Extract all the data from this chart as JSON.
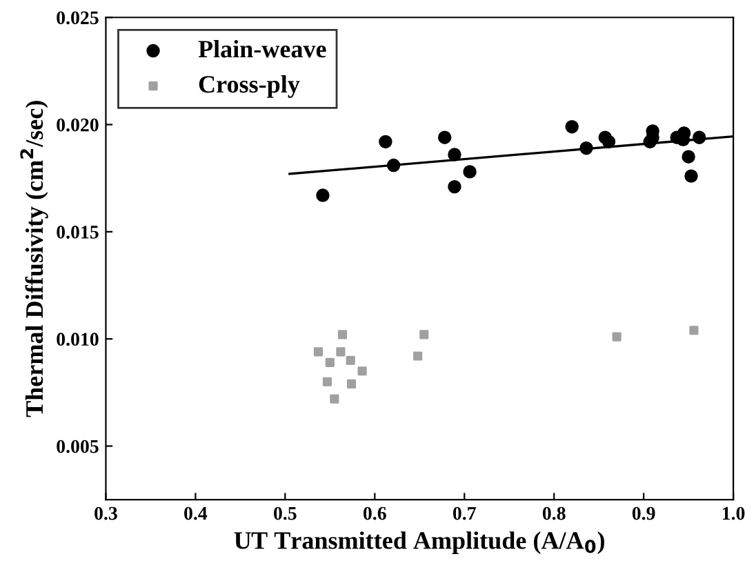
{
  "chart_data": {
    "type": "scatter",
    "xlabel": "UT Transmitted Amplitude (A/A$_{0}$)",
    "ylabel": "Thermal Diffusivity (cm$^{2}$/sec)",
    "xlim": [
      0.3,
      1.0
    ],
    "ylim": [
      0.0025,
      0.025
    ],
    "xticks": [
      {
        "value": 0.3,
        "label": "0.3"
      },
      {
        "value": 0.4,
        "label": "0.4"
      },
      {
        "value": 0.5,
        "label": "0.5"
      },
      {
        "value": 0.6,
        "label": "0.6"
      },
      {
        "value": 0.7,
        "label": "0.7"
      },
      {
        "value": 0.8,
        "label": "0.8"
      },
      {
        "value": 0.9,
        "label": "0.9"
      },
      {
        "value": 1.0,
        "label": "1.0"
      }
    ],
    "yticks": [
      {
        "value": 0.005,
        "label": "0.005"
      },
      {
        "value": 0.01,
        "label": "0.010"
      },
      {
        "value": 0.015,
        "label": "0.015"
      },
      {
        "value": 0.02,
        "label": "0.020"
      },
      {
        "value": 0.025,
        "label": "0.025"
      }
    ],
    "legend": "top left",
    "grid": false,
    "series": [
      {
        "name": "Plain-weave",
        "marker": "circle",
        "color": "#000000",
        "x": [
          0.542,
          0.612,
          0.621,
          0.678,
          0.689,
          0.689,
          0.706,
          0.82,
          0.836,
          0.857,
          0.861,
          0.907,
          0.91,
          0.91,
          0.937,
          0.945,
          0.944,
          0.95,
          0.953,
          0.962
        ],
        "values": [
          0.0167,
          0.0192,
          0.0181,
          0.0194,
          0.0186,
          0.0171,
          0.0178,
          0.0199,
          0.0189,
          0.0194,
          0.0192,
          0.0192,
          0.0197,
          0.0194,
          0.0194,
          0.0196,
          0.0193,
          0.0185,
          0.0176,
          0.0194
        ]
      },
      {
        "name": "Cross-ply",
        "marker": "square",
        "color": "#a0a0a0",
        "x": [
          0.537,
          0.564,
          0.562,
          0.55,
          0.573,
          0.586,
          0.547,
          0.574,
          0.555,
          0.648,
          0.655,
          0.87,
          0.956
        ],
        "values": [
          0.0094,
          0.0102,
          0.0094,
          0.0089,
          0.009,
          0.0085,
          0.008,
          0.0079,
          0.0072,
          0.0092,
          0.0102,
          0.0101,
          0.0104
        ]
      },
      {
        "type": "line",
        "marker": "none",
        "color": "#000000",
        "x": [
          0.505,
          1.0
        ],
        "values": [
          0.0177,
          0.01945
        ]
      }
    ]
  }
}
